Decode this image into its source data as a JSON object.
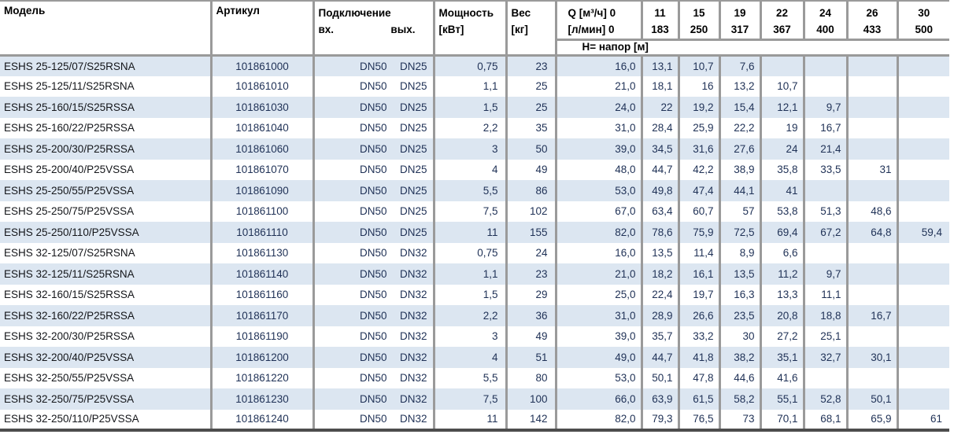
{
  "colors": {
    "border": "#9a9a9a",
    "border-dark": "#4d4d4d",
    "row-alt": "#dce6f1",
    "header-text": "#000000",
    "data-text": "#1f3156",
    "model-text": "#14161a"
  },
  "table": {
    "headers": {
      "model": "Модель",
      "article": "Артикул",
      "connection": "Подключение",
      "connection_in": "вх.",
      "connection_out": "вых.",
      "power_line1": "Мощность",
      "power_line2": "[кВт]",
      "weight_line1": "Вес",
      "weight_line2": "[кг]",
      "q_line1": "Q [м³/ч] 0",
      "q_line2": "[л/мин] 0",
      "flow_columns": [
        {
          "m3h": "11",
          "lmin": "183"
        },
        {
          "m3h": "15",
          "lmin": "250"
        },
        {
          "m3h": "19",
          "lmin": "317"
        },
        {
          "m3h": "22",
          "lmin": "367"
        },
        {
          "m3h": "24",
          "lmin": "400"
        },
        {
          "m3h": "26",
          "lmin": "433"
        },
        {
          "m3h": "30",
          "lmin": "500"
        }
      ],
      "head_row": "H= напор [м]"
    },
    "rows": [
      {
        "model": "ESHS 25-125/07/S25RSNA",
        "article": "101861000",
        "inlet": "DN50",
        "outlet": "DN25",
        "power": "0,75",
        "weight": "23",
        "h": [
          "16,0",
          "13,1",
          "10,7",
          "7,6",
          "",
          "",
          "",
          ""
        ]
      },
      {
        "model": "ESHS 25-125/11/S25RSNA",
        "article": "101861010",
        "inlet": "DN50",
        "outlet": "DN25",
        "power": "1,1",
        "weight": "25",
        "h": [
          "21,0",
          "18,1",
          "16",
          "13,2",
          "10,7",
          "",
          "",
          ""
        ]
      },
      {
        "model": "ESHS 25-160/15/S25RSSA",
        "article": "101861030",
        "inlet": "DN50",
        "outlet": "DN25",
        "power": "1,5",
        "weight": "25",
        "h": [
          "24,0",
          "22",
          "19,2",
          "15,4",
          "12,1",
          "9,7",
          "",
          ""
        ]
      },
      {
        "model": "ESHS 25-160/22/P25RSSA",
        "article": "101861040",
        "inlet": "DN50",
        "outlet": "DN25",
        "power": "2,2",
        "weight": "35",
        "h": [
          "31,0",
          "28,4",
          "25,9",
          "22,2",
          "19",
          "16,7",
          "",
          ""
        ]
      },
      {
        "model": "ESHS 25-200/30/P25RSSA",
        "article": "101861060",
        "inlet": "DN50",
        "outlet": "DN25",
        "power": "3",
        "weight": "50",
        "h": [
          "39,0",
          "34,5",
          "31,6",
          "27,6",
          "24",
          "21,4",
          "",
          ""
        ]
      },
      {
        "model": "ESHS 25-200/40/P25VSSA",
        "article": "101861070",
        "inlet": "DN50",
        "outlet": "DN25",
        "power": "4",
        "weight": "49",
        "h": [
          "48,0",
          "44,7",
          "42,2",
          "38,9",
          "35,8",
          "33,5",
          "31",
          ""
        ]
      },
      {
        "model": "ESHS 25-250/55/P25VSSA",
        "article": "101861090",
        "inlet": "DN50",
        "outlet": "DN25",
        "power": "5,5",
        "weight": "86",
        "h": [
          "53,0",
          "49,8",
          "47,4",
          "44,1",
          "41",
          "",
          "",
          ""
        ]
      },
      {
        "model": "ESHS 25-250/75/P25VSSA",
        "article": "101861100",
        "inlet": "DN50",
        "outlet": "DN25",
        "power": "7,5",
        "weight": "102",
        "h": [
          "67,0",
          "63,4",
          "60,7",
          "57",
          "53,8",
          "51,3",
          "48,6",
          ""
        ]
      },
      {
        "model": "ESHS 25-250/110/P25VSSA",
        "article": "101861110",
        "inlet": "DN50",
        "outlet": "DN25",
        "power": "11",
        "weight": "155",
        "h": [
          "82,0",
          "78,6",
          "75,9",
          "72,5",
          "69,4",
          "67,2",
          "64,8",
          "59,4"
        ]
      },
      {
        "model": "ESHS 32-125/07/S25RSNA",
        "article": "101861130",
        "inlet": "DN50",
        "outlet": "DN32",
        "power": "0,75",
        "weight": "24",
        "h": [
          "16,0",
          "13,5",
          "11,4",
          "8,9",
          "6,6",
          "",
          "",
          ""
        ]
      },
      {
        "model": "ESHS 32-125/11/S25RSNA",
        "article": "101861140",
        "inlet": "DN50",
        "outlet": "DN32",
        "power": "1,1",
        "weight": "23",
        "h": [
          "21,0",
          "18,2",
          "16,1",
          "13,5",
          "11,2",
          "9,7",
          "",
          ""
        ]
      },
      {
        "model": "ESHS 32-160/15/S25RSSA",
        "article": "101861160",
        "inlet": "DN50",
        "outlet": "DN32",
        "power": "1,5",
        "weight": "29",
        "h": [
          "25,0",
          "22,4",
          "19,7",
          "16,3",
          "13,3",
          "11,1",
          "",
          ""
        ]
      },
      {
        "model": "ESHS 32-160/22/P25RSSA",
        "article": "101861170",
        "inlet": "DN50",
        "outlet": "DN32",
        "power": "2,2",
        "weight": "36",
        "h": [
          "31,0",
          "28,9",
          "26,6",
          "23,5",
          "20,8",
          "18,8",
          "16,7",
          ""
        ]
      },
      {
        "model": "ESHS 32-200/30/P25RSSA",
        "article": "101861190",
        "inlet": "DN50",
        "outlet": "DN32",
        "power": "3",
        "weight": "49",
        "h": [
          "39,0",
          "35,7",
          "33,2",
          "30",
          "27,2",
          "25,1",
          "",
          ""
        ]
      },
      {
        "model": "ESHS 32-200/40/P25VSSA",
        "article": "101861200",
        "inlet": "DN50",
        "outlet": "DN32",
        "power": "4",
        "weight": "51",
        "h": [
          "49,0",
          "44,7",
          "41,8",
          "38,2",
          "35,1",
          "32,7",
          "30,1",
          ""
        ]
      },
      {
        "model": "ESHS 32-250/55/P25VSSA",
        "article": "101861220",
        "inlet": "DN50",
        "outlet": "DN32",
        "power": "5,5",
        "weight": "80",
        "h": [
          "53,0",
          "50,1",
          "47,8",
          "44,6",
          "41,6",
          "",
          "",
          ""
        ]
      },
      {
        "model": "ESHS 32-250/75/P25VSSA",
        "article": "101861230",
        "inlet": "DN50",
        "outlet": "DN32",
        "power": "7,5",
        "weight": "100",
        "h": [
          "66,0",
          "63,9",
          "61,5",
          "58,2",
          "55,1",
          "52,8",
          "50,1",
          ""
        ]
      },
      {
        "model": "ESHS 32-250/110/P25VSSA",
        "article": "101861240",
        "inlet": "DN50",
        "outlet": "DN32",
        "power": "11",
        "weight": "142",
        "h": [
          "82,0",
          "79,3",
          "76,5",
          "73",
          "70,1",
          "68,1",
          "65,9",
          "61"
        ]
      }
    ]
  }
}
